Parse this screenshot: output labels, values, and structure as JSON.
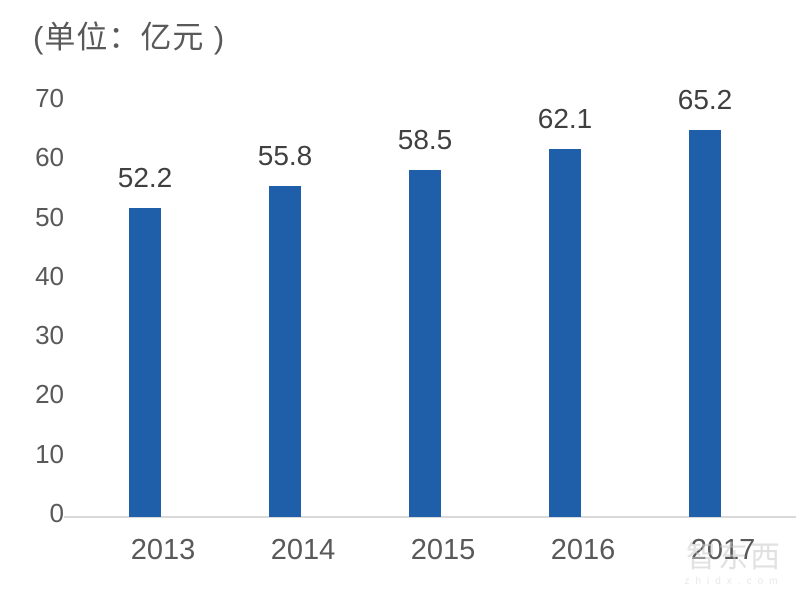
{
  "title": "(单位：亿元 )",
  "chart_data": {
    "type": "bar",
    "title": "(单位：亿元 )",
    "categories": [
      "2013",
      "2014",
      "2015",
      "2016",
      "2017"
    ],
    "values": [
      52.2,
      55.8,
      58.5,
      62.1,
      65.2
    ],
    "data_labels": [
      "52.2",
      "55.8",
      "58.5",
      "62.1",
      "65.2"
    ],
    "xlabel": "",
    "ylabel": "",
    "ylim": [
      0,
      70
    ],
    "yticks": [
      0,
      10,
      20,
      30,
      40,
      50,
      60,
      70
    ],
    "grid": false,
    "legend_position": "none",
    "bar_color": "#1f5ea9",
    "data_label_color": "#404040",
    "axis_text_color": "#595959",
    "axis_line_color": "#d9d9d9",
    "background_color": "#ffffff"
  },
  "watermark": {
    "logo_text": "智东西",
    "domain_text": "zhidx.com",
    "color": "#d6d6d6"
  }
}
